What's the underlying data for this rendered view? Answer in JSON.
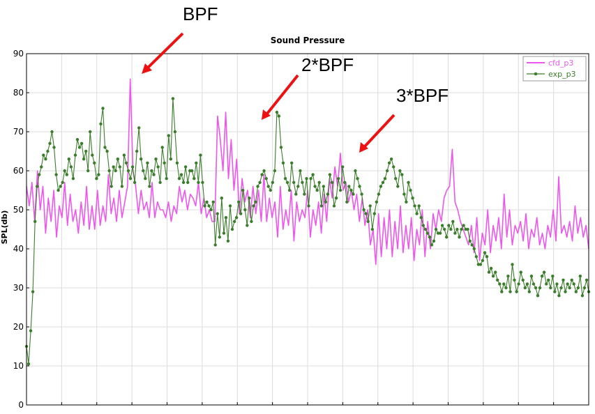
{
  "chart_data": {
    "type": "line",
    "title": "Sound Pressure",
    "xlabel": "",
    "ylabel": "SPL(db)",
    "ylim": [
      0,
      90
    ],
    "yticks": [
      "0",
      "10",
      "20",
      "30",
      "40",
      "50",
      "60",
      "70",
      "80",
      "90"
    ],
    "grid": true,
    "legend_position": "top-right",
    "annotations": [
      "BPF",
      "2*BPF",
      "3*BPF"
    ],
    "series": [
      {
        "name": "cfd_p3",
        "color": "#ee55ee",
        "marker": "none",
        "values": [
          56,
          51,
          57,
          47,
          60,
          50,
          56,
          44,
          53,
          47,
          55,
          43,
          51,
          48,
          57,
          46,
          54,
          47,
          50,
          44,
          52,
          46,
          56,
          45,
          51,
          45,
          55,
          46,
          51,
          47,
          59,
          49,
          53,
          47,
          55,
          48,
          52,
          56,
          83.5,
          60,
          56,
          49,
          55,
          50,
          52,
          48,
          57,
          48,
          52,
          50,
          50,
          48,
          52,
          47,
          51,
          49,
          56,
          52,
          55,
          50,
          54,
          53,
          51,
          57,
          49,
          53,
          48,
          50,
          47,
          47,
          74,
          68,
          60,
          75,
          58,
          68,
          55,
          63,
          49,
          58,
          52,
          55,
          48,
          56,
          49,
          55,
          47,
          59,
          47,
          53,
          48,
          52,
          43,
          56,
          45,
          50,
          46,
          55,
          42,
          52,
          47,
          50,
          48,
          55,
          43,
          50,
          46,
          52,
          44,
          54,
          47,
          58,
          53,
          61,
          56,
          64.5,
          55,
          57,
          52,
          55,
          50,
          54,
          47,
          53,
          46,
          50,
          41,
          45,
          36,
          49,
          38,
          48,
          40,
          50,
          38,
          47,
          40,
          51,
          39,
          46,
          40,
          48,
          37,
          45,
          41,
          50,
          38,
          47,
          40,
          49,
          45,
          50,
          47,
          53,
          55,
          56,
          65.5,
          52,
          50,
          47,
          45,
          43,
          41,
          46,
          39,
          48,
          37,
          44,
          41,
          50,
          39,
          46,
          42,
          48,
          40,
          54,
          43,
          50,
          41,
          46,
          44,
          47,
          42,
          49,
          40,
          45,
          43,
          48,
          41,
          44,
          40,
          46,
          43,
          50,
          42,
          58.5,
          44,
          46,
          43,
          47,
          42,
          51,
          44,
          48,
          43,
          46,
          40
        ]
      },
      {
        "name": "exp_p3",
        "color": "#3a7d2a",
        "marker": "circle",
        "values": [
          15,
          10.5,
          19,
          29,
          47,
          56,
          59,
          61,
          64,
          63,
          65,
          67,
          70,
          66,
          59,
          55,
          56,
          57,
          60,
          59,
          63,
          61,
          58,
          64,
          68,
          66,
          67,
          63,
          65,
          60,
          70,
          64,
          62,
          58,
          59,
          72,
          76,
          66,
          65,
          60,
          56,
          61,
          60,
          63,
          61,
          56,
          64,
          62,
          60,
          58,
          61,
          57,
          65,
          71,
          63,
          60,
          58,
          62,
          56,
          60,
          59,
          63,
          61,
          57,
          66,
          62,
          58,
          69,
          63,
          78.5,
          70,
          62,
          58,
          59,
          57,
          61,
          57,
          60,
          60,
          58,
          62,
          57,
          64,
          57,
          51,
          52,
          51,
          50,
          52,
          41,
          49,
          43,
          53,
          44,
          48,
          42,
          51,
          45,
          47,
          48,
          52,
          49,
          55,
          50,
          46,
          53,
          47,
          51,
          52,
          56,
          57,
          59,
          60,
          58,
          56,
          55,
          57,
          60,
          75,
          74,
          66,
          62,
          58,
          57,
          55,
          62,
          57,
          54,
          56,
          60,
          57,
          54,
          58,
          51,
          58,
          59,
          56,
          55,
          57,
          51,
          56,
          52,
          54,
          59,
          57,
          51,
          53,
          58,
          55,
          61,
          57,
          52,
          56,
          55,
          54,
          60,
          58,
          56,
          54,
          50,
          49,
          47,
          51,
          45,
          49,
          52,
          54,
          56,
          57,
          58,
          60,
          62,
          63,
          61,
          58,
          56,
          60,
          59,
          54,
          52,
          57,
          55,
          53,
          51,
          49,
          51,
          48,
          46,
          45,
          44,
          43,
          41,
          42,
          45,
          44,
          44,
          46,
          45,
          43,
          46,
          45,
          47,
          44,
          45,
          43,
          45,
          46,
          45,
          45,
          42,
          41,
          40,
          38,
          36,
          36,
          37,
          39,
          38,
          34,
          35,
          33,
          34,
          32,
          31,
          29,
          31,
          30,
          33,
          29,
          36,
          32,
          29,
          31,
          34,
          32,
          30,
          31,
          29,
          33,
          31,
          30,
          28,
          30,
          33,
          34,
          31,
          32,
          30,
          33,
          29,
          31,
          28,
          30,
          32,
          29,
          31,
          30,
          32,
          31,
          29,
          30,
          33,
          28,
          30,
          32,
          29
        ]
      }
    ]
  }
}
